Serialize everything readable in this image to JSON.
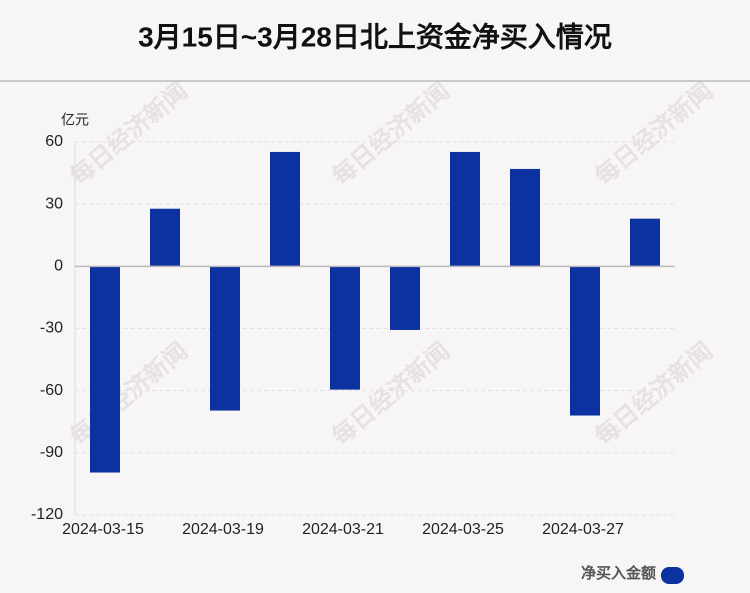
{
  "chart_data": {
    "type": "bar",
    "title": "3月15日~3月28日北上资金净买入情况",
    "y_unit": "亿元",
    "watermark": "每日经济新闻",
    "categories": [
      "2024-03-15",
      null,
      "2024-03-19",
      null,
      "2024-03-21",
      null,
      "2024-03-25",
      null,
      "2024-03-27",
      null
    ],
    "series": [
      {
        "name": "净买入金额",
        "color": "#0c31a0",
        "values": [
          -99.5,
          27.8,
          -69.6,
          55.2,
          -59.5,
          -30.7,
          55.2,
          47.0,
          -72.0,
          23.0
        ]
      }
    ],
    "ylim": [
      -120,
      60
    ],
    "yticks": [
      60,
      30,
      0,
      -30,
      -60,
      -90,
      -120
    ],
    "grid": true
  }
}
